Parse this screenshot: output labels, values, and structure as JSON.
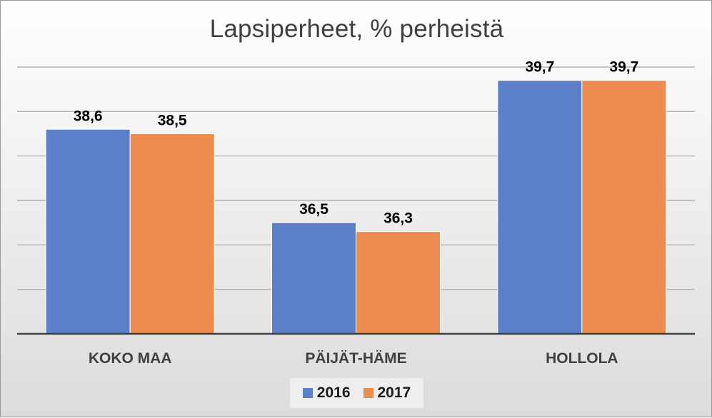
{
  "chart_data": {
    "type": "bar",
    "title": "Lapsiperheet, % perheistä",
    "categories": [
      "KOKO MAA",
      "PÄIJÄT-HÄME",
      "HOLLOLA"
    ],
    "series": [
      {
        "name": "2016",
        "color": "#5b7fc9",
        "values": [
          38.6,
          36.5,
          39.7
        ],
        "labels": [
          "38,6",
          "36,5",
          "39,7"
        ]
      },
      {
        "name": "2017",
        "color": "#ec8c4e",
        "values": [
          38.5,
          36.3,
          39.7
        ],
        "labels": [
          "38,5",
          "36,3",
          "39,7"
        ]
      }
    ],
    "ylim": [
      34,
      40
    ],
    "grid": true,
    "legend": "bottom"
  }
}
